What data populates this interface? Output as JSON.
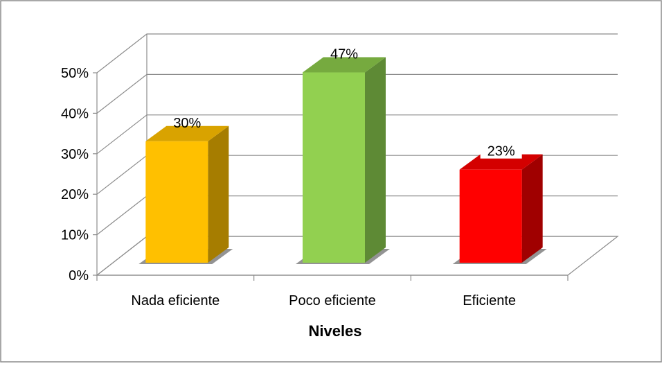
{
  "chart_data": {
    "type": "bar",
    "categories": [
      "Nada eficiente",
      "Poco eficiente",
      "Eficiente"
    ],
    "values": [
      30,
      47,
      23
    ],
    "data_labels": [
      "30%",
      "47%",
      "23%"
    ],
    "xlabel": "Niveles",
    "ylabel": "",
    "ylim": [
      0,
      50
    ],
    "yticks": [
      0,
      10,
      20,
      30,
      40,
      50
    ],
    "ytick_labels": [
      "0%",
      "10%",
      "20%",
      "30%",
      "40%",
      "50%"
    ],
    "style": "3d-column",
    "grid": true,
    "legend": "none",
    "colors": [
      {
        "front": "#FFC000",
        "side": "#A67D00",
        "top": "#D9A300"
      },
      {
        "front": "#92D050",
        "side": "#5E8A35",
        "top": "#76AA3F"
      },
      {
        "front": "#FF0000",
        "side": "#A00000",
        "top": "#D40000"
      }
    ]
  }
}
